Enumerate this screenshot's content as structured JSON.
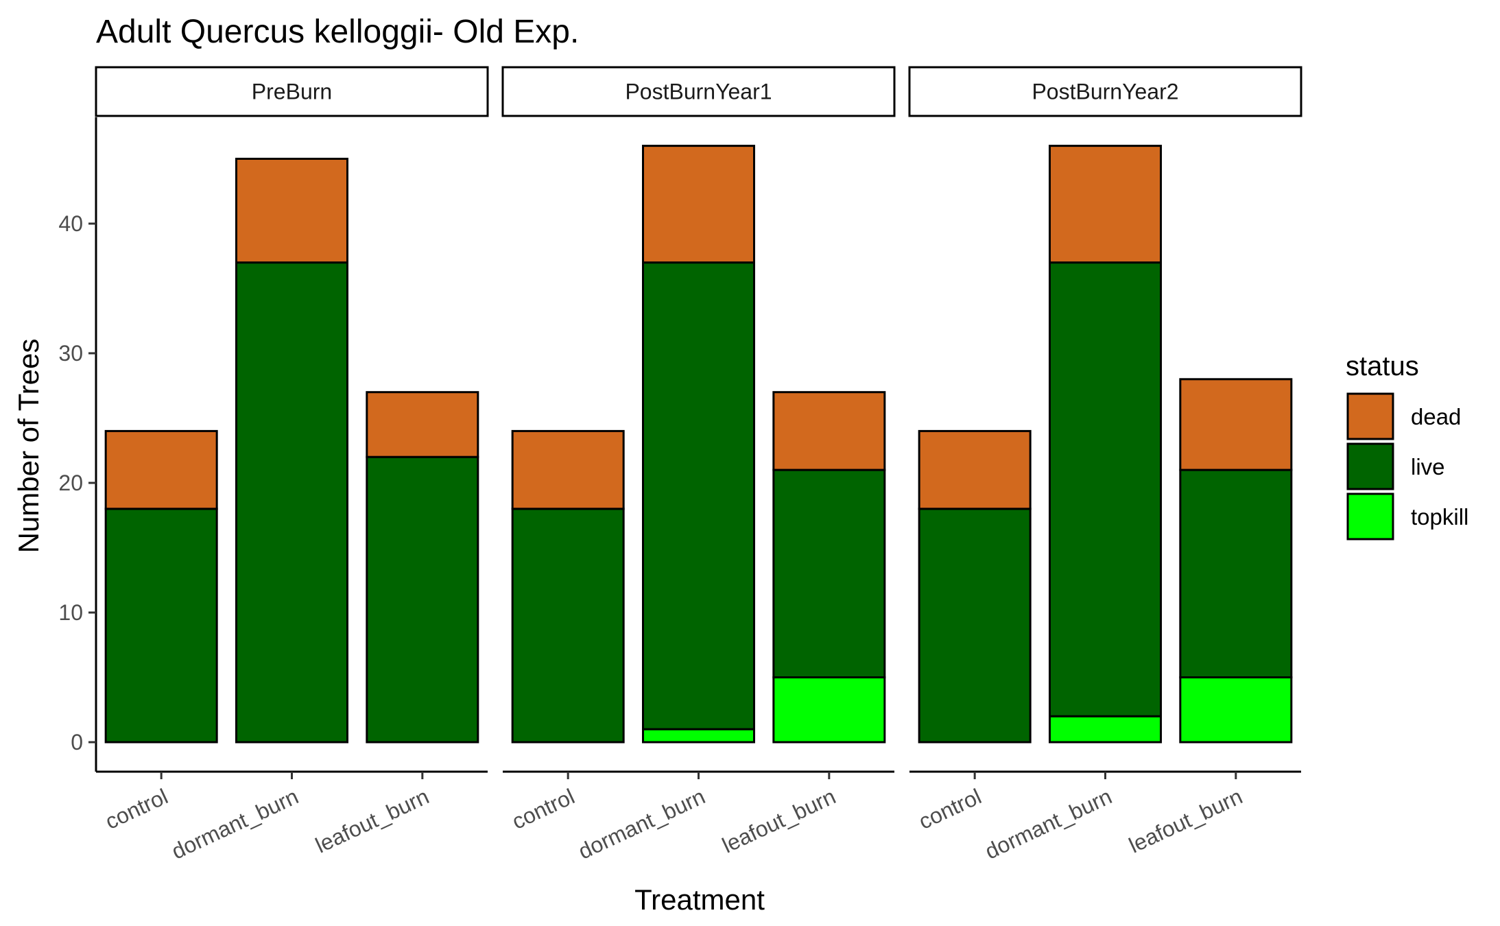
{
  "chart_data": {
    "type": "bar",
    "stacked": true,
    "faceted": true,
    "title": "Adult Quercus kelloggii- Old Exp.",
    "xlabel": "Treatment",
    "ylabel": "Number of Trees",
    "ylim": [
      0,
      47
    ],
    "yticks": [
      0,
      10,
      20,
      30,
      40
    ],
    "grid": false,
    "legend": {
      "title": "status",
      "position": "right",
      "entries": [
        {
          "name": "dead",
          "color": "#D2691E"
        },
        {
          "name": "live",
          "color": "#006400"
        },
        {
          "name": "topkill",
          "color": "#00FF00"
        }
      ]
    },
    "categories": [
      "control",
      "dormant_burn",
      "leafout_burn"
    ],
    "facets": [
      {
        "label": "PreBurn",
        "series": [
          {
            "name": "topkill",
            "values": [
              0,
              0,
              0
            ]
          },
          {
            "name": "live",
            "values": [
              18,
              37,
              22
            ]
          },
          {
            "name": "dead",
            "values": [
              6,
              8,
              5
            ]
          }
        ]
      },
      {
        "label": "PostBurnYear1",
        "series": [
          {
            "name": "topkill",
            "values": [
              0,
              1,
              5
            ]
          },
          {
            "name": "live",
            "values": [
              18,
              36,
              16
            ]
          },
          {
            "name": "dead",
            "values": [
              6,
              9,
              6
            ]
          }
        ]
      },
      {
        "label": "PostBurnYear2",
        "series": [
          {
            "name": "topkill",
            "values": [
              0,
              2,
              5
            ]
          },
          {
            "name": "live",
            "values": [
              18,
              35,
              16
            ]
          },
          {
            "name": "dead",
            "values": [
              6,
              9,
              7
            ]
          }
        ]
      }
    ]
  }
}
